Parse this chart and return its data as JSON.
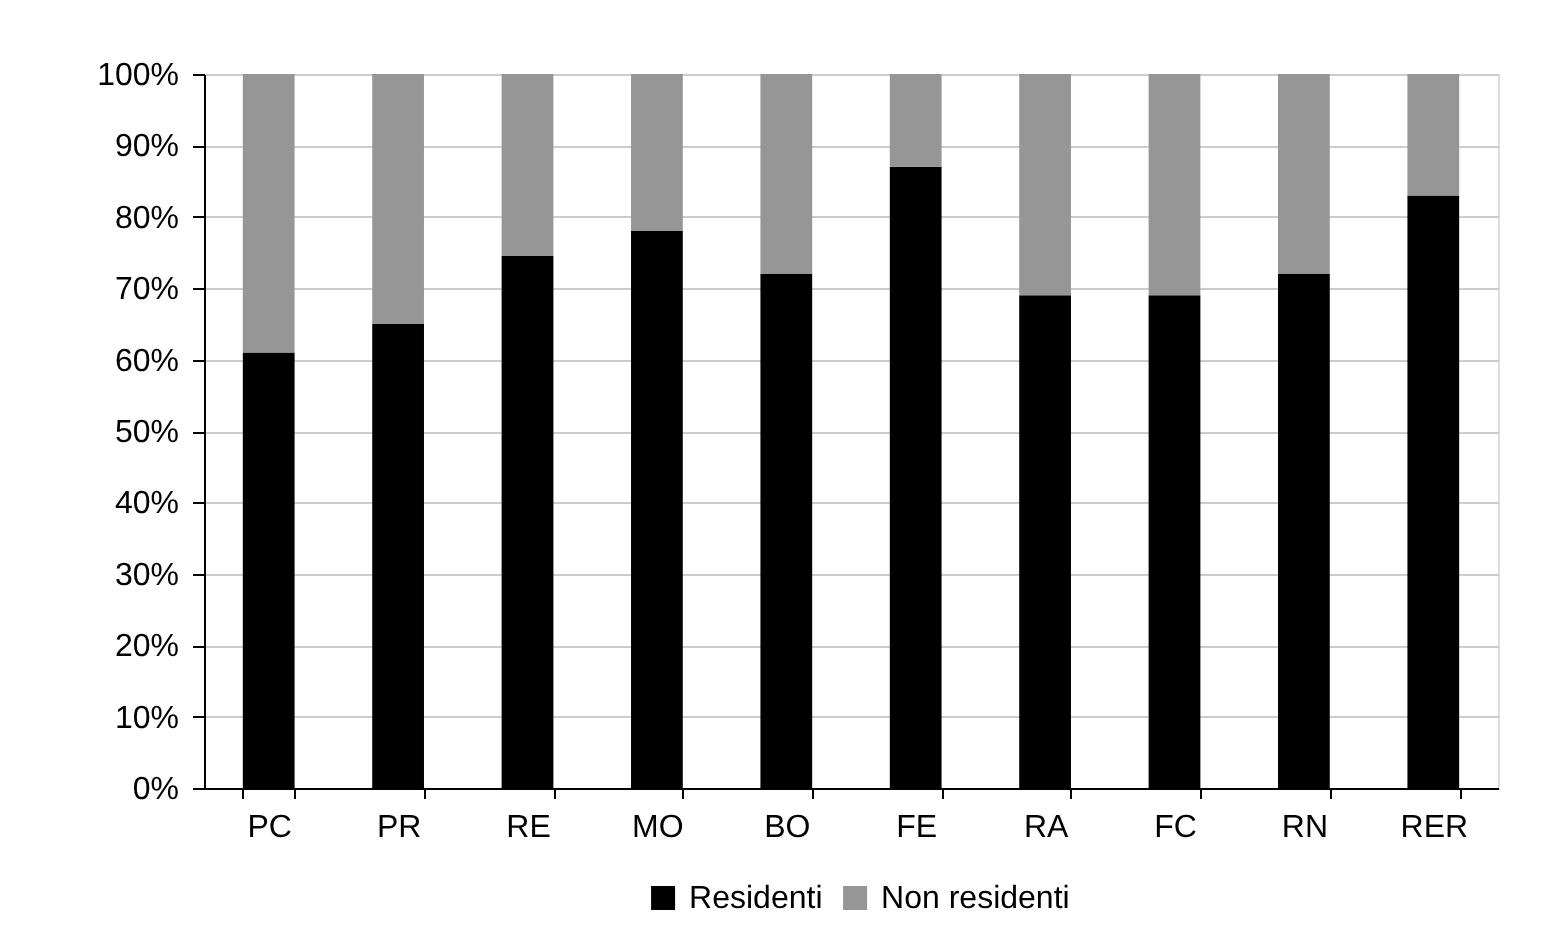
{
  "chart_data": {
    "type": "bar",
    "stacked": true,
    "categories": [
      "PC",
      "PR",
      "RE",
      "MO",
      "BO",
      "FE",
      "RA",
      "FC",
      "RN",
      "RER"
    ],
    "series": [
      {
        "name": "Residenti",
        "color": "#000000",
        "values": [
          61,
          65,
          74.5,
          78,
          72,
          87,
          69,
          69,
          72,
          83
        ]
      },
      {
        "name": "Non residenti",
        "color": "#969696",
        "values": [
          39,
          35,
          25.5,
          22,
          28,
          13,
          31,
          31,
          28,
          17
        ]
      }
    ],
    "ylim": [
      0,
      100
    ],
    "yticks": [
      {
        "value": 0,
        "label": "0%"
      },
      {
        "value": 10,
        "label": "10%"
      },
      {
        "value": 20,
        "label": "20%"
      },
      {
        "value": 30,
        "label": "30%"
      },
      {
        "value": 40,
        "label": "40%"
      },
      {
        "value": 50,
        "label": "50%"
      },
      {
        "value": 60,
        "label": "60%"
      },
      {
        "value": 70,
        "label": "70%"
      },
      {
        "value": 80,
        "label": "80%"
      },
      {
        "value": 90,
        "label": "90%"
      },
      {
        "value": 100,
        "label": "100%"
      }
    ],
    "grid": "y",
    "legend": "bottom"
  }
}
